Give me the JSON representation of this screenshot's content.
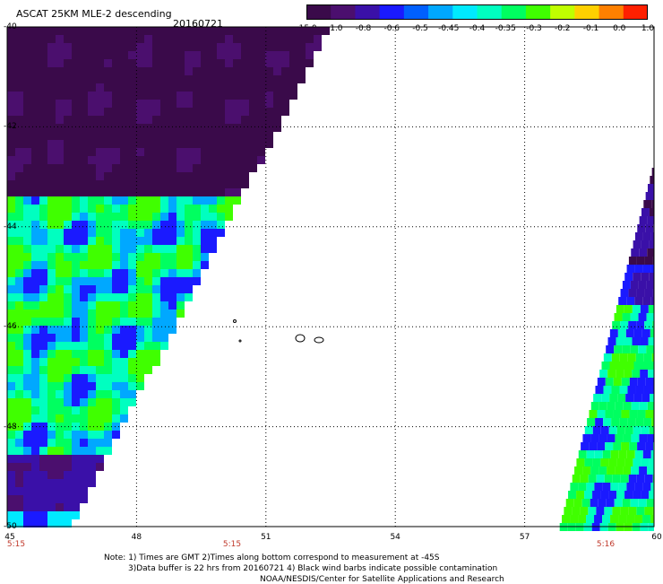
{
  "header": {
    "title": "ASCAT 25KM MLE-2 descending",
    "date": "20160721"
  },
  "colorbar": {
    "labels": [
      "-15.0",
      "-1.0",
      "-0.8",
      "-0.6",
      "-0.5",
      "-0.45",
      "-0.4",
      "-0.35",
      "-0.3",
      "-0.2",
      "-0.1",
      "0.0",
      "1.0"
    ],
    "colors": [
      "#3a0a4a",
      "#4b0f6e",
      "#3a10a8",
      "#1a1aff",
      "#0060ff",
      "#00a8ff",
      "#00eaff",
      "#00ffc0",
      "#00ff60",
      "#40ff00",
      "#c0ff00",
      "#ffd000",
      "#ff8000",
      "#ff2000"
    ]
  },
  "axes": {
    "lat_labels": [
      "-40",
      "-42",
      "-44",
      "-46",
      "-48",
      "-50"
    ],
    "lon_labels": [
      "45",
      "48",
      "51",
      "54",
      "57",
      "60"
    ],
    "time_labels": [
      "5:15",
      "5:15",
      "5:16"
    ]
  },
  "notes": {
    "line1": "Note: 1) Times are GMT 2)Times along bottom correspond to measurement at -45S",
    "line2": "3)Data buffer is 22 hrs from 20160721 4) Black wind barbs indicate possible contamination",
    "line3": "NOAA/NESDIS/Center for Satellite Applications and Research"
  }
}
